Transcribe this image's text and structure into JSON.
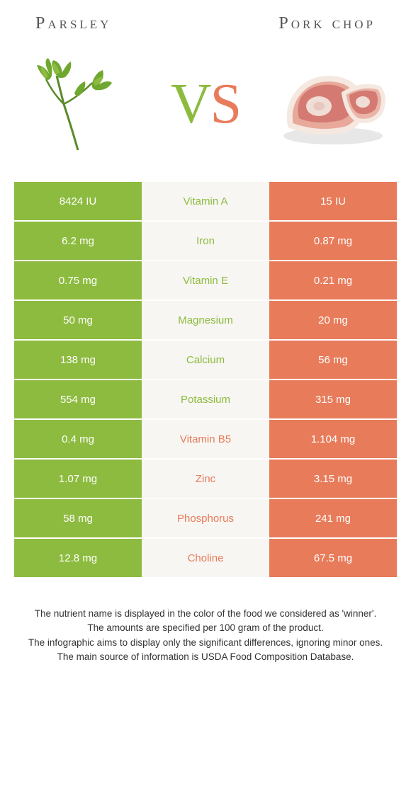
{
  "header": {
    "left_title": "Parsley",
    "right_title": "Pork chop"
  },
  "vs": {
    "v": "V",
    "s": "S"
  },
  "colors": {
    "left_bg": "#8dbb3f",
    "right_bg": "#e87b5a",
    "mid_bg": "#f7f6f2",
    "left_text": "#8dbb3f",
    "right_text": "#e87b5a",
    "cell_text": "#ffffff"
  },
  "rows": [
    {
      "left": "8424 IU",
      "nutrient": "Vitamin A",
      "right": "15 IU",
      "winner": "left"
    },
    {
      "left": "6.2 mg",
      "nutrient": "Iron",
      "right": "0.87 mg",
      "winner": "left"
    },
    {
      "left": "0.75 mg",
      "nutrient": "Vitamin E",
      "right": "0.21 mg",
      "winner": "left"
    },
    {
      "left": "50 mg",
      "nutrient": "Magnesium",
      "right": "20 mg",
      "winner": "left"
    },
    {
      "left": "138 mg",
      "nutrient": "Calcium",
      "right": "56 mg",
      "winner": "left"
    },
    {
      "left": "554 mg",
      "nutrient": "Potassium",
      "right": "315 mg",
      "winner": "left"
    },
    {
      "left": "0.4 mg",
      "nutrient": "Vitamin B5",
      "right": "1.104 mg",
      "winner": "right"
    },
    {
      "left": "1.07 mg",
      "nutrient": "Zinc",
      "right": "3.15 mg",
      "winner": "right"
    },
    {
      "left": "58 mg",
      "nutrient": "Phosphorus",
      "right": "241 mg",
      "winner": "right"
    },
    {
      "left": "12.8 mg",
      "nutrient": "Choline",
      "right": "67.5 mg",
      "winner": "right"
    }
  ],
  "footer": {
    "line1": "The nutrient name is displayed in the color of the food we considered as 'winner'.",
    "line2": "The amounts are specified per 100 gram of the product.",
    "line3": "The infographic aims to display only the significant differences, ignoring minor ones.",
    "line4": "The main source of information is USDA Food Composition Database."
  }
}
